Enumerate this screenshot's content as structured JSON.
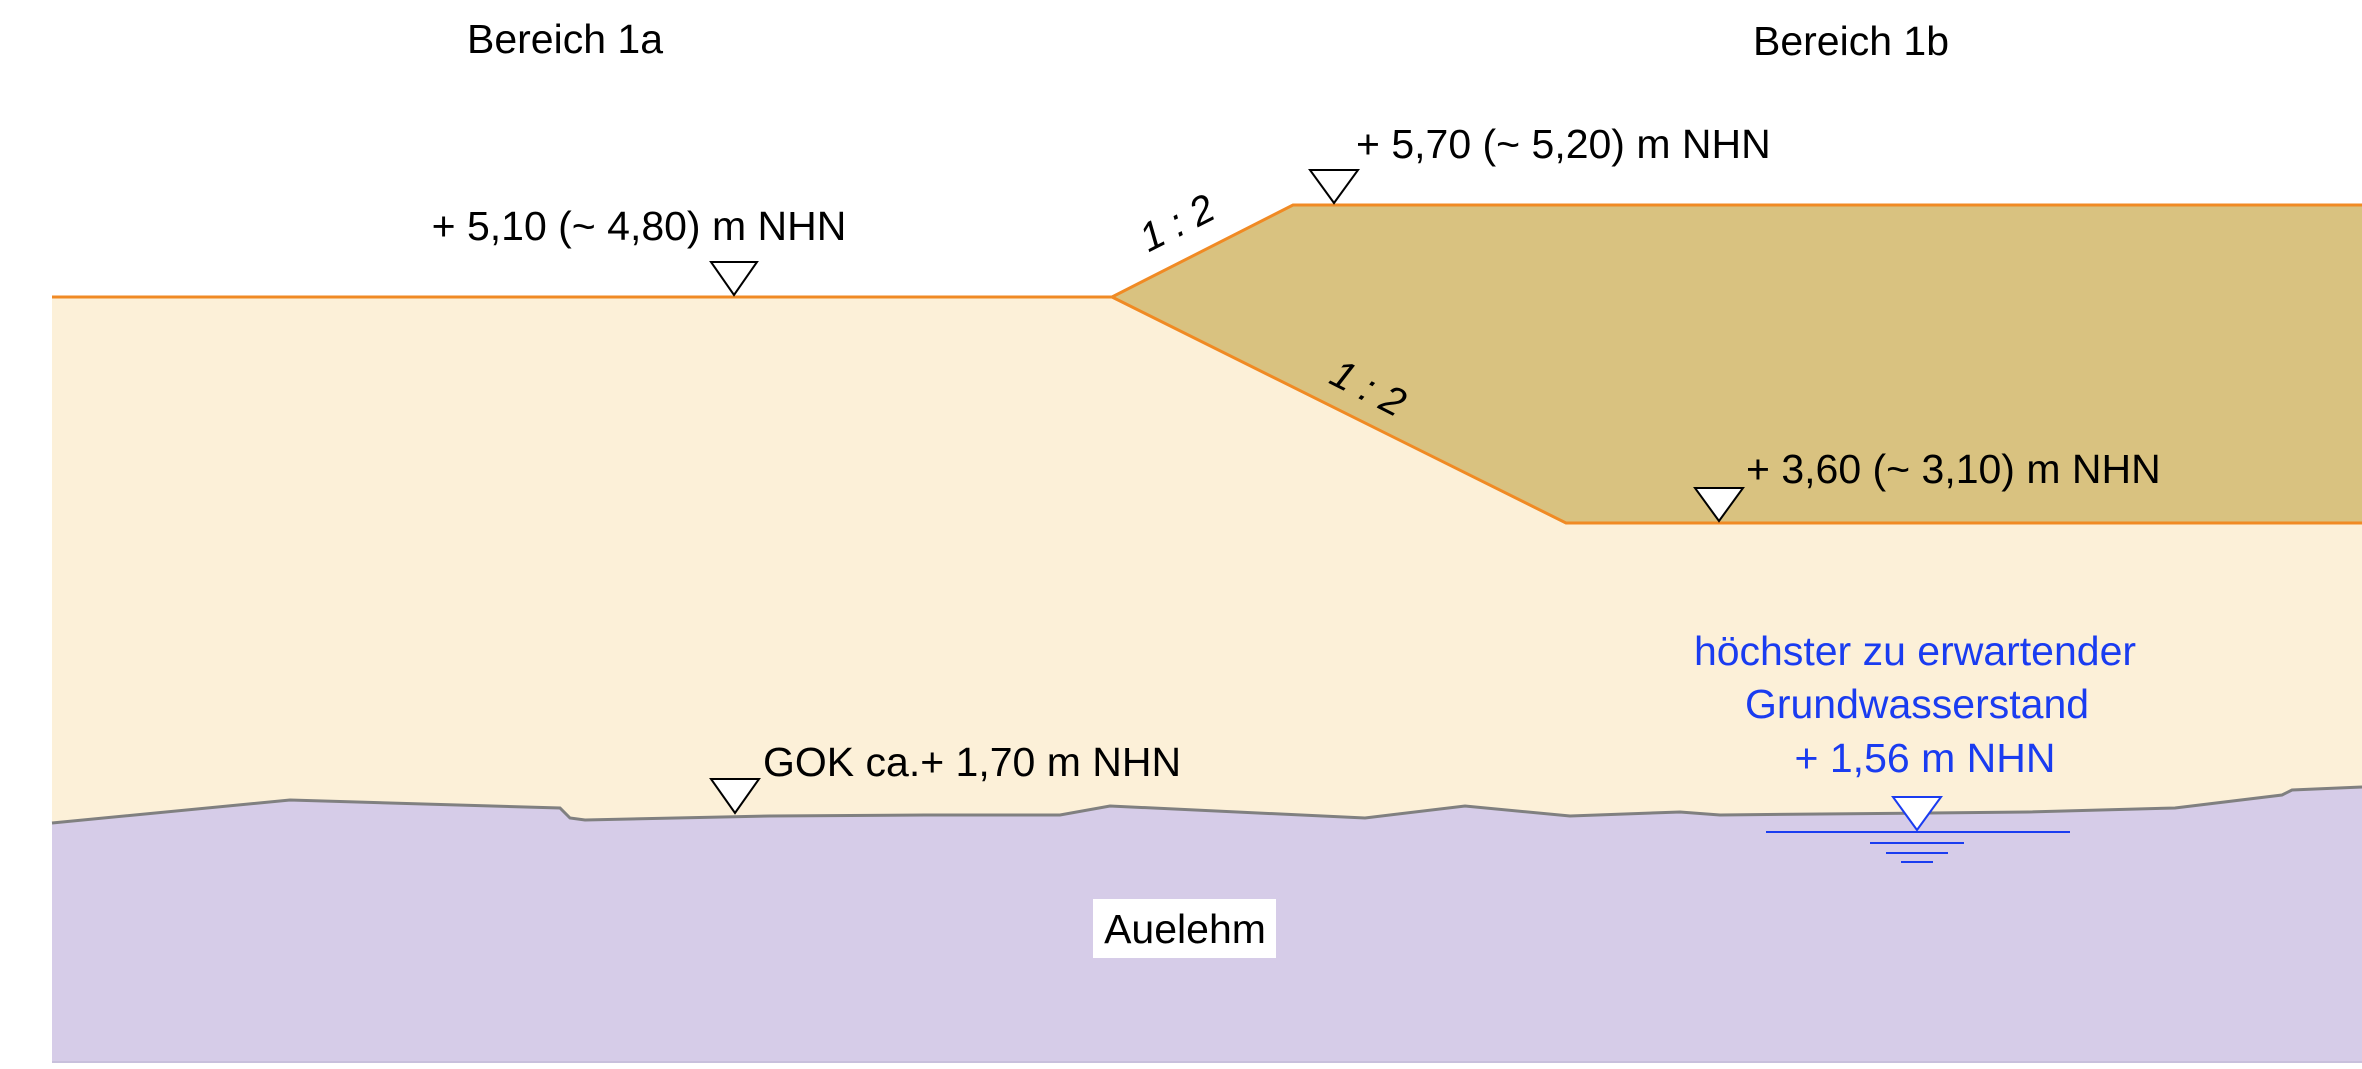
{
  "sections": {
    "left": "Bereich 1a",
    "right": "Bereich 1b"
  },
  "levels": {
    "fill_top_left": "+ 5,10 (~ 4,80) m NHN",
    "fill_top_right": "+ 5,70 (~ 5,20) m NHN",
    "fill_base_right": "+ 3,60 (~ 3,10) m NHN",
    "ground": "GOK ca.+ 1,70 m NHN"
  },
  "slopes": {
    "upper": "1 : 2",
    "lower": "1 : 2"
  },
  "groundwater": {
    "line1": "höchster zu erwartender",
    "line2": "Grundwasserstand",
    "line3": "+ 1,56 m NHN"
  },
  "layers": {
    "clay": "Auelehm"
  },
  "colors": {
    "fill_light": "#FCF0D8",
    "fill_dark": "#D9C280",
    "clay": "#D6CCE8",
    "boundary": "#F08A24",
    "ground_line": "#808080",
    "water": "#1A3CF0"
  }
}
